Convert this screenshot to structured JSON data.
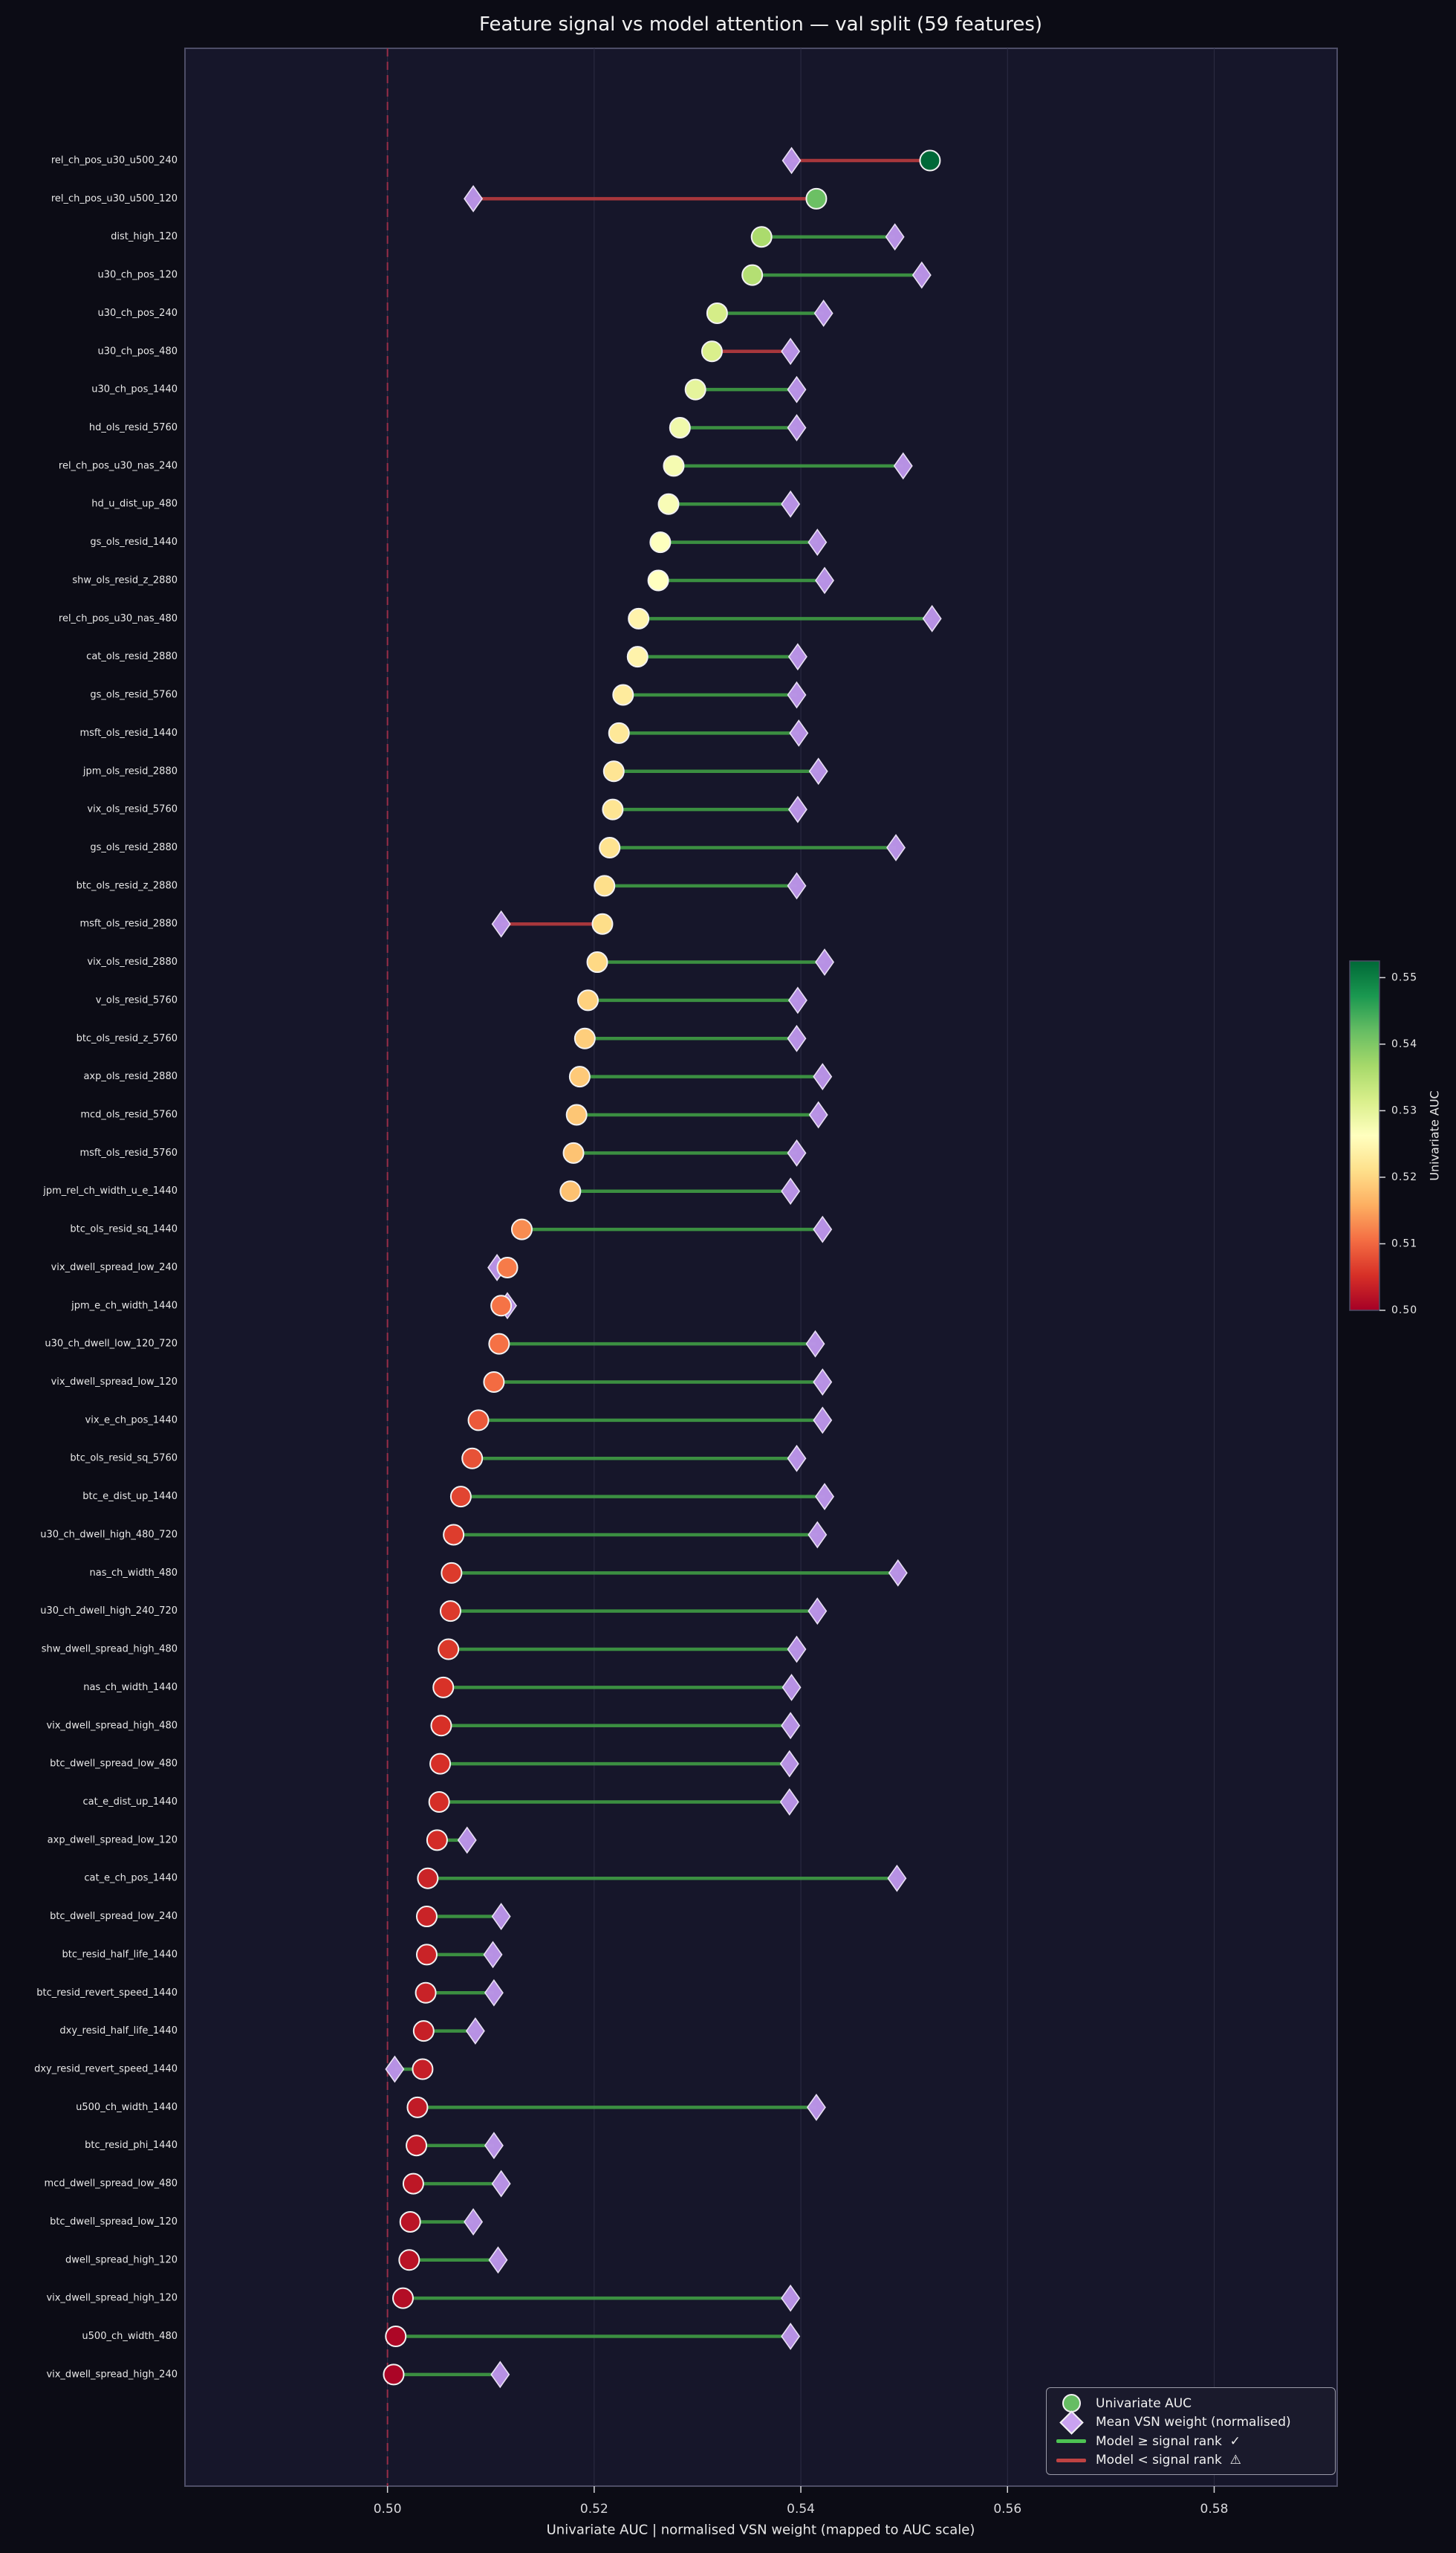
{
  "chart_data": {
    "type": "dumbbell",
    "title": "Feature signal vs model attention — val split  (59 features)",
    "x_label": "Univariate AUC  |  normalised VSN weight (mapped to AUC scale)",
    "x_ticks": [
      0.5,
      0.52,
      0.54,
      0.56,
      0.58
    ],
    "x_tick_labels": [
      "0.50",
      "0.52",
      "0.54",
      "0.56",
      "0.58"
    ],
    "x_range": [
      0.4804,
      0.5919
    ],
    "ref_line": 0.5,
    "grid": "vertical",
    "legend_position": "lower right",
    "categories": [
      "rel_ch_pos_u30_u500_240",
      "rel_ch_pos_u30_u500_120",
      "dist_high_120",
      "u30_ch_pos_120",
      "u30_ch_pos_240",
      "u30_ch_pos_480",
      "u30_ch_pos_1440",
      "hd_ols_resid_5760",
      "rel_ch_pos_u30_nas_240",
      "hd_u_dist_up_480",
      "gs_ols_resid_1440",
      "shw_ols_resid_z_2880",
      "rel_ch_pos_u30_nas_480",
      "cat_ols_resid_2880",
      "gs_ols_resid_5760",
      "msft_ols_resid_1440",
      "jpm_ols_resid_2880",
      "vix_ols_resid_5760",
      "gs_ols_resid_2880",
      "btc_ols_resid_z_2880",
      "msft_ols_resid_2880",
      "vix_ols_resid_2880",
      "v_ols_resid_5760",
      "btc_ols_resid_z_5760",
      "axp_ols_resid_2880",
      "mcd_ols_resid_5760",
      "msft_ols_resid_5760",
      "jpm_rel_ch_width_u_e_1440",
      "btc_ols_resid_sq_1440",
      "vix_dwell_spread_low_240",
      "jpm_e_ch_width_1440",
      "u30_ch_dwell_low_120_720",
      "vix_dwell_spread_low_120",
      "vix_e_ch_pos_1440",
      "btc_ols_resid_sq_5760",
      "btc_e_dist_up_1440",
      "u30_ch_dwell_high_480_720",
      "nas_ch_width_480",
      "u30_ch_dwell_high_240_720",
      "shw_dwell_spread_high_480",
      "nas_ch_width_1440",
      "vix_dwell_spread_high_480",
      "btc_dwell_spread_low_480",
      "cat_e_dist_up_1440",
      "axp_dwell_spread_low_120",
      "cat_e_ch_pos_1440",
      "btc_dwell_spread_low_240",
      "btc_resid_half_life_1440",
      "btc_resid_revert_speed_1440",
      "dxy_resid_half_life_1440",
      "dxy_resid_revert_speed_1440",
      "u500_ch_width_1440",
      "btc_resid_phi_1440",
      "mcd_dwell_spread_low_480",
      "btc_dwell_spread_low_120",
      "dwell_spread_high_120",
      "vix_dwell_spread_high_120",
      "u500_ch_width_480",
      "vix_dwell_spread_high_240"
    ],
    "series": [
      {
        "name": "Univariate AUC",
        "marker": "circle",
        "values": [
          0.5525,
          0.5415,
          0.5362,
          0.5353,
          0.5319,
          0.5314,
          0.5298,
          0.5283,
          0.5277,
          0.5272,
          0.5264,
          0.5262,
          0.5243,
          0.5242,
          0.5228,
          0.5224,
          0.5219,
          0.5218,
          0.5215,
          0.521,
          0.5208,
          0.5203,
          0.5194,
          0.5191,
          0.5186,
          0.5183,
          0.518,
          0.5177,
          0.513,
          0.5116,
          0.511,
          0.5108,
          0.5103,
          0.5088,
          0.5082,
          0.5071,
          0.5064,
          0.5062,
          0.5061,
          0.5059,
          0.5054,
          0.5052,
          0.5051,
          0.505,
          0.5048,
          0.5039,
          0.5038,
          0.5038,
          0.5037,
          0.5035,
          0.5034,
          0.5029,
          0.5028,
          0.5025,
          0.5022,
          0.5021,
          0.5015,
          0.5008,
          0.5006
        ]
      },
      {
        "name": "Mean VSN weight (normalised)",
        "marker": "diamond",
        "values": [
          0.5391,
          0.5083,
          0.5491,
          0.5517,
          0.5422,
          0.539,
          0.5396,
          0.5396,
          0.5499,
          0.539,
          0.5416,
          0.5423,
          0.5527,
          0.5397,
          0.5396,
          0.5398,
          0.5417,
          0.5397,
          0.5492,
          0.5396,
          0.511,
          0.5423,
          0.5397,
          0.5396,
          0.5421,
          0.5417,
          0.5396,
          0.539,
          0.5421,
          0.5106,
          0.5116,
          0.5414,
          0.5421,
          0.5421,
          0.5396,
          0.5423,
          0.5416,
          0.5494,
          0.5416,
          0.5396,
          0.5391,
          0.539,
          0.5389,
          0.5389,
          0.5077,
          0.5493,
          0.511,
          0.5102,
          0.5103,
          0.5085,
          0.5007,
          0.5415,
          0.5103,
          0.511,
          0.5083,
          0.5107,
          0.539,
          0.539,
          0.5109
        ]
      }
    ],
    "model_ge_signal": [
      false,
      false,
      true,
      true,
      true,
      false,
      true,
      true,
      true,
      true,
      true,
      true,
      true,
      true,
      true,
      true,
      true,
      true,
      true,
      true,
      false,
      true,
      true,
      true,
      true,
      true,
      true,
      true,
      true,
      false,
      true,
      true,
      true,
      true,
      true,
      true,
      true,
      true,
      true,
      true,
      true,
      true,
      true,
      true,
      true,
      true,
      true,
      true,
      true,
      true,
      true,
      true,
      true,
      true,
      true,
      true,
      true,
      true,
      true
    ],
    "colorbar": {
      "label": "Univariate AUC",
      "vmin": 0.5,
      "vmax": 0.5525,
      "tick_values": [
        0.5,
        0.51,
        0.52,
        0.53,
        0.54,
        0.55
      ],
      "tick_labels": [
        "0.50",
        "0.51",
        "0.52",
        "0.53",
        "0.54",
        "0.55"
      ]
    }
  },
  "legend": {
    "items": [
      {
        "icon": "circle",
        "label": "Univariate AUC"
      },
      {
        "icon": "diamond",
        "label": "Mean VSN weight (normalised)"
      },
      {
        "icon": "green-line",
        "label": "Model ≥ signal rank  ✓"
      },
      {
        "icon": "red-line",
        "label": "Model < signal rank  ⚠"
      }
    ]
  },
  "ui": {
    "background": "#0c0c15",
    "plot_bg": "#16162a",
    "border": "#4d4d66",
    "grid": "#2c2c44",
    "ref_line": "#a43049",
    "line_green": "#3f9a44",
    "line_red": "#b53a3e",
    "diamond_fill": "#bd95ea",
    "diamond_edge": "#efe6fb",
    "marker_edge": "#f2f2f2",
    "text": "#e8e8e8",
    "tick_text": "#d8d8dc",
    "colormap": [
      "#a50026",
      "#d73027",
      "#f46d43",
      "#fdae61",
      "#fee08b",
      "#ffffbf",
      "#d9ef8b",
      "#a6d96a",
      "#66bd63",
      "#1a9850",
      "#006837"
    ]
  }
}
